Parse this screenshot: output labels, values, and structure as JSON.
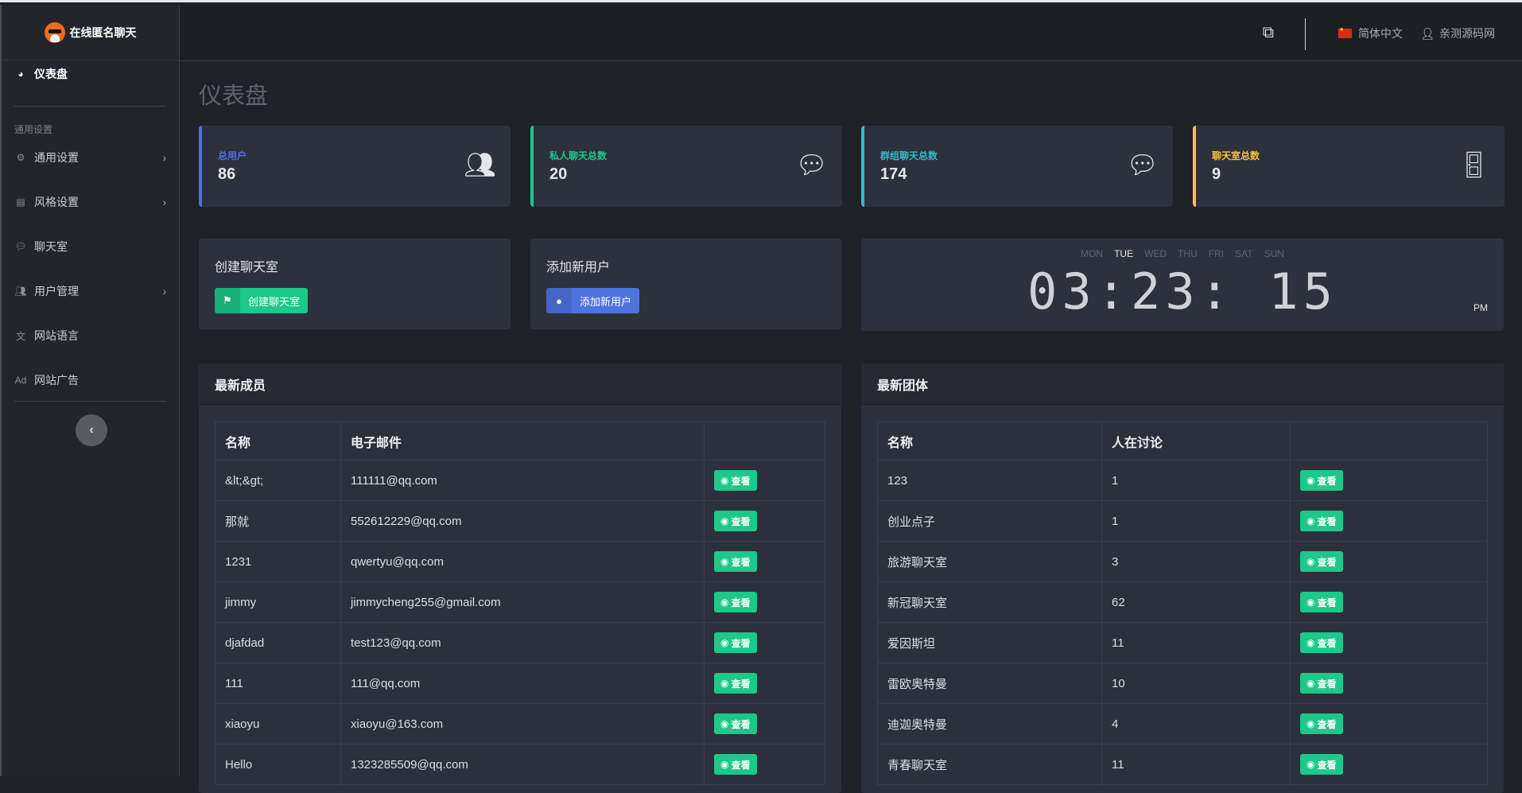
{
  "brand": {
    "name": "在线匿名聊天"
  },
  "sidebar": {
    "dashboard": "仪表盘",
    "section_label": "通用设置",
    "items": [
      {
        "label": "通用设置",
        "icon": "gear-icon",
        "has_submenu": true
      },
      {
        "label": "风格设置",
        "icon": "palette-icon",
        "has_submenu": true
      },
      {
        "label": "聊天室",
        "icon": "comments-icon",
        "has_submenu": false
      },
      {
        "label": "用户管理",
        "icon": "users-icon",
        "has_submenu": true
      },
      {
        "label": "网站语言",
        "icon": "language-icon",
        "has_submenu": false
      },
      {
        "label": "网站广告",
        "icon": "ad-icon",
        "has_submenu": false
      }
    ]
  },
  "header": {
    "language": "简体中文",
    "user": "亲测源码网"
  },
  "page": {
    "title": "仪表盘"
  },
  "stats": [
    {
      "label": "总用户",
      "value": "86",
      "color": "#4e73df",
      "icon": "users-icon"
    },
    {
      "label": "私人聊天总数",
      "value": "20",
      "color": "#1cc88a",
      "icon": "comment-dots-icon"
    },
    {
      "label": "群组聊天总数",
      "value": "174",
      "color": "#36b9cc",
      "icon": "comments-icon"
    },
    {
      "label": "聊天室总数",
      "value": "9",
      "color": "#f6c23e",
      "icon": "door-open-icon"
    }
  ],
  "actions": {
    "create_room": {
      "title": "创建聊天室",
      "button": "创建聊天室",
      "color": "#1cc88a"
    },
    "add_user": {
      "title": "添加新用户",
      "button": "添加新用户",
      "color": "#4e73df"
    }
  },
  "clock": {
    "days": [
      "MON",
      "TUE",
      "WED",
      "THU",
      "FRI",
      "SAT",
      "SUN"
    ],
    "active_day": "TUE",
    "time": "03:23: 15",
    "ampm": "PM"
  },
  "members": {
    "title": "最新成员",
    "columns": [
      "名称",
      "电子邮件",
      ""
    ],
    "view_label": "查看",
    "rows": [
      [
        "&lt;&gt;",
        "111111@qq.com"
      ],
      [
        "那就",
        "552612229@qq.com"
      ],
      [
        "1231",
        "qwertyu@qq.com"
      ],
      [
        "jimmy",
        "jimmycheng255@gmail.com"
      ],
      [
        "djafdad",
        "test123@qq.com"
      ],
      [
        "111",
        "111@qq.com"
      ],
      [
        "xiaoyu",
        "xiaoyu@163.com"
      ],
      [
        "Hello",
        "1323285509@qq.com"
      ]
    ]
  },
  "groups": {
    "title": "最新团体",
    "columns": [
      "名称",
      "人在讨论",
      ""
    ],
    "view_label": "查看",
    "rows": [
      [
        "123",
        "1"
      ],
      [
        "创业点子",
        "1"
      ],
      [
        "旅游聊天室",
        "3"
      ],
      [
        "新冠聊天室",
        "62"
      ],
      [
        "爱因斯坦",
        "11"
      ],
      [
        "雷欧奥特曼",
        "10"
      ],
      [
        "迪迦奥特曼",
        "4"
      ],
      [
        "青春聊天室",
        "11"
      ]
    ]
  }
}
